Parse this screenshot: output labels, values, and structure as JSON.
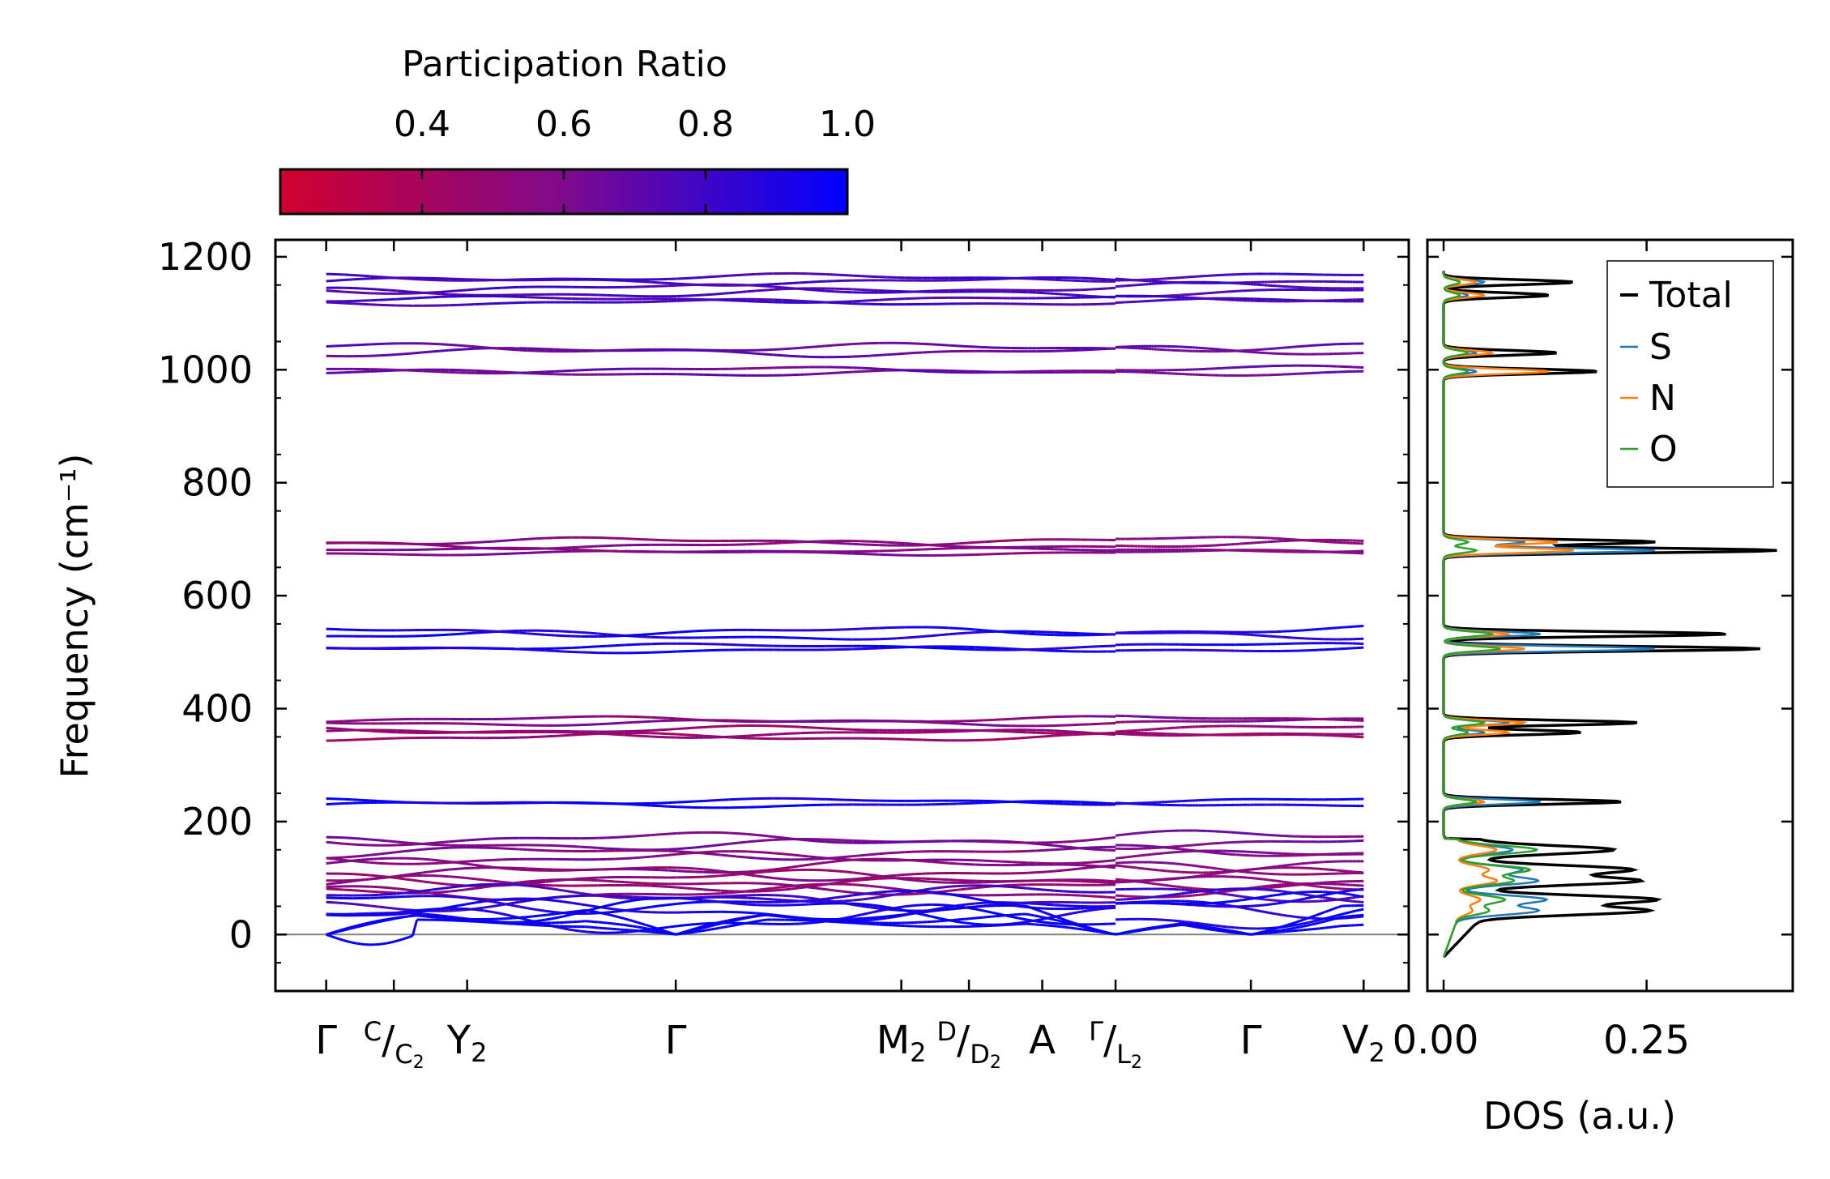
{
  "colors": {
    "cmap_low": "#D0002E",
    "cmap_mid": "#7E0A8C",
    "cmap_high": "#0000FF",
    "total": "#000000",
    "S": "#1f77b4",
    "N": "#ff7f0e",
    "O": "#2ca02c",
    "zero_line": "#808080"
  },
  "chart_data": [
    {
      "type": "line",
      "name": "phonon-dispersion",
      "ylabel": "Frequency (cm⁻¹)",
      "ylim": [
        -100,
        1230
      ],
      "yticks": [
        0,
        200,
        400,
        600,
        800,
        1000,
        1200
      ],
      "ytick_labels": [
        "0",
        "200",
        "400",
        "600",
        "800",
        "1000",
        "1200"
      ],
      "xlim": [
        -0.45,
        9.6
      ],
      "xticks": [
        0,
        0.6,
        1.25,
        3.1,
        5.1,
        5.7,
        6.35,
        7.0,
        8.2,
        9.2
      ],
      "xlabels": [
        {
          "x": 0,
          "main": "Γ"
        },
        {
          "x": 0.6,
          "sup": "C",
          "sub": "C",
          "subsub": "2"
        },
        {
          "x": 1.25,
          "main": "Y",
          "sub": "2"
        },
        {
          "x": 3.1,
          "main": "Γ"
        },
        {
          "x": 5.1,
          "main": "M",
          "sub": "2"
        },
        {
          "x": 5.7,
          "sup": "D",
          "sub": "D",
          "subsub": "2"
        },
        {
          "x": 6.35,
          "main": "A"
        },
        {
          "x": 7.0,
          "sup": "Γ",
          "sub": "L",
          "subsub": "2"
        },
        {
          "x": 8.2,
          "main": "Γ"
        },
        {
          "x": 9.2,
          "main": "V",
          "sub": "2"
        }
      ],
      "zero_line": 0,
      "band_groups": [
        {
          "center": 1160,
          "count": 2,
          "pr": 0.78,
          "amp": 5
        },
        {
          "center": 1140,
          "count": 2,
          "pr": 0.76,
          "amp": 6
        },
        {
          "center": 1122,
          "count": 2,
          "pr": 0.78,
          "amp": 4
        },
        {
          "center": 1035,
          "count": 2,
          "pr": 0.68,
          "amp": 6
        },
        {
          "center": 997,
          "count": 2,
          "pr": 0.66,
          "amp": 4
        },
        {
          "center": 693,
          "count": 2,
          "pr": 0.55,
          "amp": 5
        },
        {
          "center": 678,
          "count": 2,
          "pr": 0.58,
          "amp": 3
        },
        {
          "center": 533,
          "count": 2,
          "pr": 0.92,
          "amp": 6
        },
        {
          "center": 507,
          "count": 2,
          "pr": 0.93,
          "amp": 4
        },
        {
          "center": 378,
          "count": 2,
          "pr": 0.58,
          "amp": 4
        },
        {
          "center": 356,
          "count": 3,
          "pr": 0.48,
          "amp": 5
        },
        {
          "center": 233,
          "count": 2,
          "pr": 0.96,
          "amp": 4
        },
        {
          "center": 165,
          "count": 2,
          "pr": 0.62,
          "amp": 8
        },
        {
          "center": 140,
          "count": 2,
          "pr": 0.58,
          "amp": 8
        },
        {
          "center": 115,
          "count": 2,
          "pr": 0.55,
          "amp": 10
        },
        {
          "center": 95,
          "count": 2,
          "pr": 0.5,
          "amp": 10
        },
        {
          "center": 80,
          "count": 2,
          "pr": 0.52,
          "amp": 10
        },
        {
          "center": 65,
          "count": 2,
          "pr": 0.8,
          "amp": 12
        },
        {
          "center": 50,
          "count": 2,
          "pr": 0.92,
          "amp": 14
        },
        {
          "center": 35,
          "count": 2,
          "pr": 0.95,
          "amp": 18
        }
      ]
    },
    {
      "type": "colorbar",
      "name": "participation-ratio-colorbar",
      "title": "Participation Ratio",
      "range": [
        0.2,
        1.0
      ],
      "ticks": [
        0.4,
        0.6,
        0.8,
        1.0
      ],
      "tick_labels": [
        "0.4",
        "0.6",
        "0.8",
        "1.0"
      ]
    },
    {
      "type": "line",
      "name": "density-of-states",
      "xlabel": "DOS (a.u.)",
      "xlim": [
        -0.02,
        0.43
      ],
      "xticks": [
        0.0,
        0.25
      ],
      "xtick_labels": [
        "0.00",
        "0.25"
      ],
      "ylim": [
        -100,
        1230
      ],
      "legend_position": "top-right",
      "legend": [
        "Total",
        "S",
        "N",
        "O"
      ],
      "peaks": [
        {
          "f": 1155,
          "total": 0.16,
          "S": 0.05,
          "N": 0.04,
          "O": 0.02
        },
        {
          "f": 1132,
          "total": 0.13,
          "S": 0.03,
          "N": 0.05,
          "O": 0.02
        },
        {
          "f": 1030,
          "total": 0.14,
          "S": 0.04,
          "N": 0.06,
          "O": 0.03
        },
        {
          "f": 997,
          "total": 0.19,
          "S": 0.04,
          "N": 0.13,
          "O": 0.03
        },
        {
          "f": 695,
          "total": 0.26,
          "S": 0.1,
          "N": 0.14,
          "O": 0.03
        },
        {
          "f": 680,
          "total": 0.41,
          "S": 0.26,
          "N": 0.16,
          "O": 0.04
        },
        {
          "f": 532,
          "total": 0.35,
          "S": 0.12,
          "N": 0.08,
          "O": 0.06
        },
        {
          "f": 506,
          "total": 0.39,
          "S": 0.26,
          "N": 0.1,
          "O": 0.07
        },
        {
          "f": 375,
          "total": 0.24,
          "S": 0.08,
          "N": 0.1,
          "O": 0.05
        },
        {
          "f": 358,
          "total": 0.17,
          "S": 0.05,
          "N": 0.08,
          "O": 0.03
        },
        {
          "f": 235,
          "total": 0.22,
          "S": 0.12,
          "N": 0.05,
          "O": 0.04
        },
        {
          "f": 150,
          "total": 0.17,
          "S": 0.07,
          "N": 0.05,
          "O": 0.1
        },
        {
          "f": 115,
          "total": 0.19,
          "S": 0.08,
          "N": 0.04,
          "O": 0.09
        },
        {
          "f": 95,
          "total": 0.2,
          "S": 0.1,
          "N": 0.05,
          "O": 0.07
        },
        {
          "f": 62,
          "total": 0.22,
          "S": 0.11,
          "N": 0.03,
          "O": 0.06
        },
        {
          "f": 42,
          "total": 0.21,
          "S": 0.1,
          "N": 0.02,
          "O": 0.04
        }
      ]
    }
  ]
}
